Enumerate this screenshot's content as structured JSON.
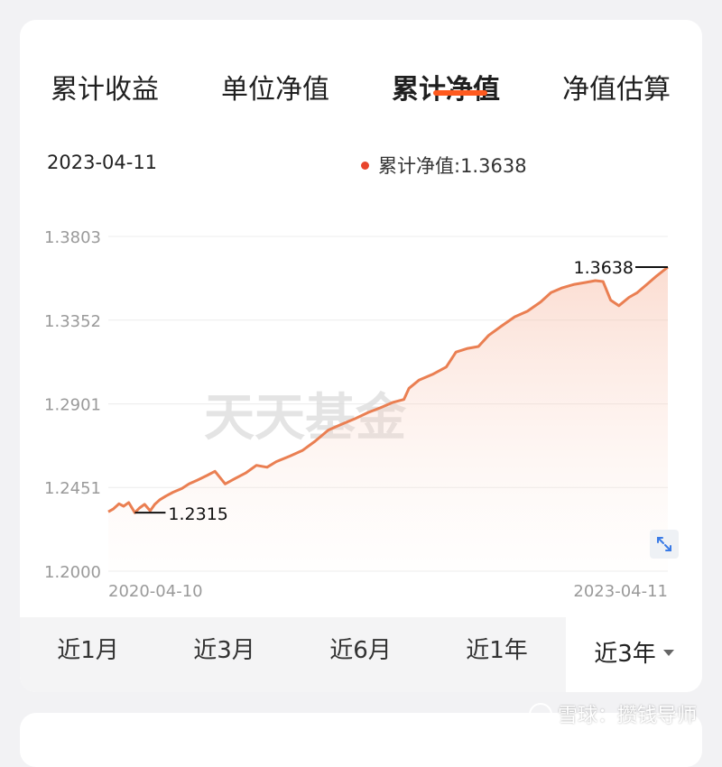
{
  "tabs": [
    {
      "label": "累计收益",
      "active": false
    },
    {
      "label": "单位净值",
      "active": false
    },
    {
      "label": "累计净值",
      "active": true
    },
    {
      "label": "净值估算",
      "active": false
    }
  ],
  "info": {
    "date": "2023-04-11",
    "legend_label": "累计净值:1.3638"
  },
  "watermark": "天天基金",
  "chart_data": {
    "type": "area",
    "series": [
      {
        "color": "#e8452c",
        "points": [
          [
            "2020-04-10",
            1.232
          ],
          [
            "2020-04-20",
            1.2336
          ],
          [
            "2020-05-01",
            1.2363
          ],
          [
            "2020-05-10",
            1.235
          ],
          [
            "2020-05-20",
            1.237
          ],
          [
            "2020-06-01",
            1.2315
          ],
          [
            "2020-06-10",
            1.234
          ],
          [
            "2020-06-20",
            1.236
          ],
          [
            "2020-07-01",
            1.2325
          ],
          [
            "2020-07-10",
            1.236
          ],
          [
            "2020-07-20",
            1.2385
          ],
          [
            "2020-08-01",
            1.2405
          ],
          [
            "2020-08-15",
            1.2425
          ],
          [
            "2020-09-01",
            1.2445
          ],
          [
            "2020-09-15",
            1.247
          ],
          [
            "2020-10-01",
            1.249
          ],
          [
            "2020-10-20",
            1.2515
          ],
          [
            "2020-11-05",
            1.2538
          ],
          [
            "2020-11-25",
            1.247
          ],
          [
            "2020-12-15",
            1.25
          ],
          [
            "2021-01-05",
            1.253
          ],
          [
            "2021-01-25",
            1.257
          ],
          [
            "2021-02-15",
            1.256
          ],
          [
            "2021-03-05",
            1.259
          ],
          [
            "2021-04-01",
            1.262
          ],
          [
            "2021-04-25",
            1.265
          ],
          [
            "2021-05-20",
            1.27
          ],
          [
            "2021-06-15",
            1.276
          ],
          [
            "2021-07-10",
            1.279
          ],
          [
            "2021-08-05",
            1.282
          ],
          [
            "2021-09-01",
            1.2855
          ],
          [
            "2021-09-25",
            1.288
          ],
          [
            "2021-10-20",
            1.291
          ],
          [
            "2021-11-10",
            1.2925
          ],
          [
            "2021-11-20",
            1.2985
          ],
          [
            "2021-12-10",
            1.303
          ],
          [
            "2022-01-05",
            1.306
          ],
          [
            "2022-02-01",
            1.31
          ],
          [
            "2022-02-20",
            1.318
          ],
          [
            "2022-03-15",
            1.32
          ],
          [
            "2022-04-05",
            1.321
          ],
          [
            "2022-04-25",
            1.327
          ],
          [
            "2022-05-20",
            1.332
          ],
          [
            "2022-06-15",
            1.337
          ],
          [
            "2022-07-10",
            1.34
          ],
          [
            "2022-08-05",
            1.345
          ],
          [
            "2022-08-25",
            1.35
          ],
          [
            "2022-09-15",
            1.3525
          ],
          [
            "2022-10-10",
            1.3545
          ],
          [
            "2022-11-01",
            1.3555
          ],
          [
            "2022-11-20",
            1.3565
          ],
          [
            "2022-12-05",
            1.356
          ],
          [
            "2022-12-20",
            1.346
          ],
          [
            "2023-01-05",
            1.343
          ],
          [
            "2023-01-25",
            1.3475
          ],
          [
            "2023-02-10",
            1.35
          ],
          [
            "2023-03-01",
            1.3545
          ],
          [
            "2023-03-20",
            1.359
          ],
          [
            "2023-04-11",
            1.3638
          ]
        ]
      }
    ],
    "y_ticks": [
      "1.3803",
      "1.3352",
      "1.2901",
      "1.2451",
      "1.2000"
    ],
    "ylim": [
      1.2,
      1.3803
    ],
    "x_labels": [
      "2020-04-10",
      "2023-04-11"
    ],
    "xlim": [
      "2020-04-10",
      "2023-04-11"
    ],
    "annotations": [
      {
        "label": "1.2315",
        "date": "2020-06-01",
        "value": 1.2315
      },
      {
        "label": "1.3638",
        "date": "2023-04-11",
        "value": 1.3638
      }
    ],
    "grid": true
  },
  "ranges": [
    {
      "label": "近1月",
      "active": false
    },
    {
      "label": "近3月",
      "active": false
    },
    {
      "label": "近6月",
      "active": false
    },
    {
      "label": "近1年",
      "active": false
    },
    {
      "label": "近3年",
      "active": true
    }
  ],
  "icons": {
    "expand": "expand-icon",
    "caret": "caret-down-icon"
  },
  "footer_watermark": "雪球：攒钱导师"
}
